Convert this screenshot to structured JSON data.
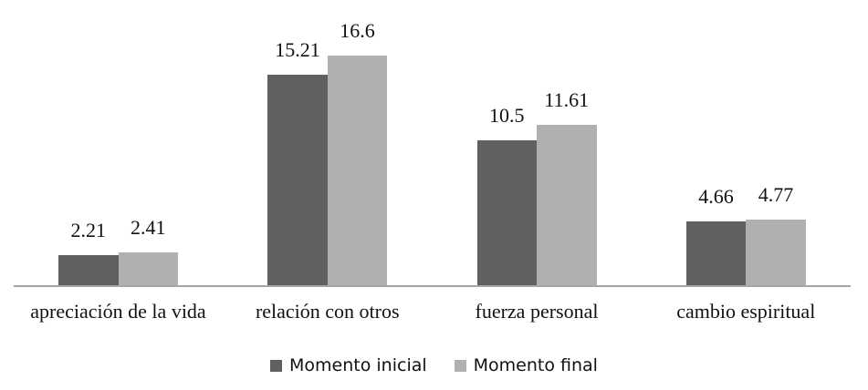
{
  "chart_data": {
    "type": "bar",
    "title": "",
    "xlabel": "",
    "ylabel": "",
    "categories": [
      "apreciación de la vida",
      "relación con otros",
      "fuerza personal",
      "cambio espiritual"
    ],
    "series": [
      {
        "name": "Momento inicial",
        "color": "#606060",
        "values": [
          2.21,
          15.21,
          10.5,
          4.66
        ]
      },
      {
        "name": "Momento final",
        "color": "#b0b0b0",
        "values": [
          2.41,
          16.6,
          11.61,
          4.77
        ]
      }
    ],
    "value_labels": [
      [
        "2.21",
        "15.21",
        "10.5",
        "4.66"
      ],
      [
        "2.41",
        "16.6",
        "11.61",
        "4.77"
      ]
    ],
    "ylim": [
      0,
      17
    ],
    "grid": false,
    "legend_position": "bottom",
    "show_y_axis": false
  }
}
